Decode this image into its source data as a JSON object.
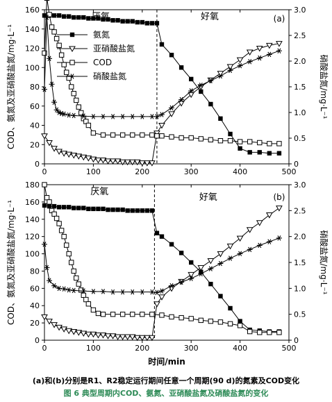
{
  "figure": {
    "caption_note": "(a)和(b)分别是R1、R2稳定运行期间任意一个周期(90 d)的氮素及COD变化",
    "caption_title": "图 6 典型周期内COD、氨氮、亚硝酸盐氮及硝酸盐氮的变化",
    "colors": {
      "line": "#000000",
      "caption_title": "#2e8b57"
    }
  },
  "chart_data": [
    {
      "type": "line",
      "panel_label": "(a)",
      "xlabel": "",
      "ylabel": "COD、氨氮及亚硝酸盐氮/mg·L⁻¹",
      "y2label": "硝酸盐氮/mg·L⁻¹",
      "xlim": [
        0,
        500
      ],
      "ylim": [
        0,
        160
      ],
      "y2lim": [
        0,
        3.0
      ],
      "xticks": [
        "0",
        "100",
        "200",
        "300",
        "400",
        "500"
      ],
      "yticks": [
        "0",
        "20",
        "40",
        "60",
        "80",
        "100",
        "120",
        "140",
        "160"
      ],
      "y2ticks": [
        "0",
        "0.5",
        "1.0",
        "1.5",
        "2.0",
        "2.5",
        "3.0"
      ],
      "phase_labels": [
        "厌氧",
        "好氧"
      ],
      "phase_boundary_x": 230,
      "legend": [
        "氨氮",
        "亚硝酸盐氮",
        "COD",
        "硝酸盐氮"
      ],
      "series": [
        {
          "name": "氨氮",
          "marker": "filled-square",
          "axis": "left",
          "x": [
            0,
            10,
            20,
            30,
            40,
            50,
            60,
            70,
            80,
            90,
            100,
            110,
            120,
            130,
            140,
            150,
            160,
            170,
            180,
            190,
            200,
            210,
            220,
            230,
            240,
            260,
            280,
            300,
            320,
            340,
            360,
            380,
            400,
            420,
            440,
            460,
            480
          ],
          "y": [
            154,
            154,
            154,
            154,
            153,
            153,
            152,
            152,
            152,
            151,
            151,
            151,
            150,
            150,
            149,
            149,
            148,
            148,
            148,
            147,
            147,
            146,
            146,
            146,
            124,
            113,
            100,
            88,
            75,
            62,
            47,
            31,
            16,
            12,
            12,
            11,
            11
          ]
        },
        {
          "name": "亚硝酸盐氮",
          "marker": "open-triangle-down",
          "axis": "left",
          "x": [
            0,
            10,
            20,
            30,
            40,
            50,
            60,
            70,
            80,
            90,
            100,
            110,
            120,
            130,
            140,
            150,
            160,
            170,
            180,
            190,
            200,
            210,
            220,
            230,
            240,
            260,
            280,
            300,
            320,
            340,
            360,
            380,
            400,
            420,
            440,
            460,
            480
          ],
          "y": [
            29,
            22,
            16,
            13,
            11,
            10,
            9,
            8,
            7,
            6,
            5,
            4,
            4,
            3,
            3,
            3,
            2,
            2,
            2,
            2,
            1,
            1,
            1,
            32,
            40,
            52,
            63,
            72,
            80,
            87,
            94,
            101,
            108,
            116,
            120,
            123,
            125
          ]
        },
        {
          "name": "COD",
          "marker": "open-square",
          "axis": "left",
          "x": [
            0,
            5,
            10,
            15,
            20,
            25,
            30,
            35,
            40,
            45,
            50,
            55,
            60,
            65,
            70,
            75,
            80,
            85,
            90,
            100,
            120,
            140,
            160,
            180,
            200,
            220,
            230,
            240,
            260,
            280,
            300,
            320,
            340,
            360,
            380,
            400,
            420,
            440,
            460,
            480
          ],
          "y": [
            115,
            172,
            155,
            142,
            137,
            130,
            123,
            113,
            103,
            95,
            89,
            80,
            73,
            66,
            59,
            53,
            47,
            44,
            40,
            32,
            30,
            30,
            30,
            30,
            30,
            30,
            29,
            29,
            28,
            27,
            27,
            26,
            25,
            24,
            24,
            23,
            23,
            22,
            21,
            21
          ]
        },
        {
          "name": "硝酸盐氮",
          "marker": "asterisk",
          "axis": "right",
          "x": [
            0,
            5,
            10,
            15,
            20,
            25,
            30,
            35,
            40,
            50,
            60,
            80,
            100,
            120,
            140,
            160,
            180,
            200,
            220,
            230,
            240,
            260,
            280,
            300,
            320,
            340,
            360,
            380,
            400,
            420,
            440,
            460,
            480
          ],
          "y": [
            1.45,
            2.85,
            2.05,
            1.55,
            1.2,
            1.05,
            1.0,
            0.98,
            0.97,
            0.95,
            0.94,
            0.93,
            0.92,
            0.92,
            0.92,
            0.92,
            0.92,
            0.92,
            0.92,
            0.92,
            0.96,
            1.09,
            1.25,
            1.42,
            1.53,
            1.62,
            1.71,
            1.82,
            1.91,
            1.99,
            2.06,
            2.13,
            2.2
          ]
        }
      ]
    },
    {
      "type": "line",
      "panel_label": "(b)",
      "xlabel": "时间/min",
      "ylabel": "COD、氨氮及亚硝酸盐氮/mg·L⁻¹",
      "y2label": "硝酸盐氮/mg·L⁻¹",
      "xlim": [
        0,
        500
      ],
      "ylim": [
        0,
        180
      ],
      "y2lim": [
        0,
        3.0
      ],
      "xticks": [
        "0",
        "100",
        "200",
        "300",
        "400",
        "500"
      ],
      "yticks": [
        "0",
        "20",
        "40",
        "60",
        "80",
        "100",
        "120",
        "140",
        "160",
        "180"
      ],
      "y2ticks": [
        "0",
        "0.5",
        "1.0",
        "1.5",
        "2.0",
        "2.5",
        "3.0"
      ],
      "phase_labels": [
        "厌氧",
        "好氧"
      ],
      "phase_boundary_x": 225,
      "series": [
        {
          "name": "氨氮",
          "marker": "filled-square",
          "axis": "left",
          "x": [
            0,
            10,
            20,
            30,
            40,
            50,
            60,
            70,
            80,
            90,
            100,
            110,
            120,
            130,
            140,
            150,
            160,
            170,
            180,
            190,
            200,
            210,
            220,
            230,
            240,
            260,
            280,
            300,
            320,
            340,
            360,
            380,
            400,
            420,
            440,
            460,
            480
          ],
          "y": [
            156,
            155,
            155,
            154,
            154,
            154,
            153,
            153,
            153,
            152,
            152,
            152,
            152,
            151,
            151,
            151,
            151,
            150,
            150,
            150,
            150,
            150,
            150,
            124,
            120,
            111,
            101,
            90,
            79,
            65,
            51,
            37,
            22,
            12,
            11,
            10,
            10
          ]
        },
        {
          "name": "亚硝酸盐氮",
          "marker": "open-triangle-down",
          "axis": "left",
          "x": [
            0,
            10,
            20,
            30,
            40,
            50,
            60,
            70,
            80,
            90,
            100,
            110,
            120,
            130,
            140,
            150,
            160,
            170,
            180,
            190,
            200,
            210,
            220,
            230,
            240,
            260,
            280,
            300,
            320,
            340,
            360,
            380,
            400,
            420,
            440,
            460,
            480
          ],
          "y": [
            27,
            22,
            18,
            15,
            13,
            11,
            10,
            9,
            8,
            7,
            7,
            6,
            6,
            5,
            5,
            4,
            4,
            4,
            4,
            3,
            3,
            3,
            3,
            42,
            50,
            60,
            68,
            76,
            84,
            92,
            100,
            109,
            118,
            128,
            136,
            145,
            153
          ]
        },
        {
          "name": "COD",
          "marker": "open-square",
          "axis": "left",
          "x": [
            0,
            5,
            10,
            15,
            20,
            25,
            30,
            35,
            40,
            45,
            50,
            55,
            60,
            65,
            70,
            75,
            80,
            85,
            90,
            100,
            110,
            120,
            140,
            160,
            180,
            200,
            220,
            240,
            260,
            280,
            300,
            320,
            340,
            360,
            380,
            400,
            420,
            440,
            460,
            480
          ],
          "y": [
            180,
            165,
            160,
            150,
            146,
            141,
            135,
            127,
            120,
            110,
            100,
            90,
            80,
            72,
            65,
            58,
            52,
            47,
            42,
            35,
            31,
            30,
            30,
            30,
            30,
            30,
            30,
            29,
            27,
            26,
            25,
            23,
            22,
            21,
            19,
            17,
            10,
            9,
            9,
            9
          ]
        },
        {
          "name": "硝酸盐氮",
          "marker": "asterisk",
          "axis": "right",
          "x": [
            0,
            5,
            10,
            20,
            30,
            40,
            50,
            60,
            80,
            100,
            120,
            140,
            160,
            180,
            200,
            220,
            230,
            240,
            260,
            280,
            300,
            320,
            340,
            360,
            380,
            400,
            420,
            440,
            460,
            480
          ],
          "y": [
            1.85,
            1.4,
            1.15,
            1.05,
            1.0,
            0.99,
            0.97,
            0.96,
            0.95,
            0.94,
            0.94,
            0.93,
            0.93,
            0.93,
            0.93,
            0.93,
            0.92,
            0.95,
            1.05,
            1.12,
            1.19,
            1.28,
            1.38,
            1.48,
            1.58,
            1.67,
            1.75,
            1.83,
            1.9,
            1.97
          ]
        }
      ]
    }
  ]
}
